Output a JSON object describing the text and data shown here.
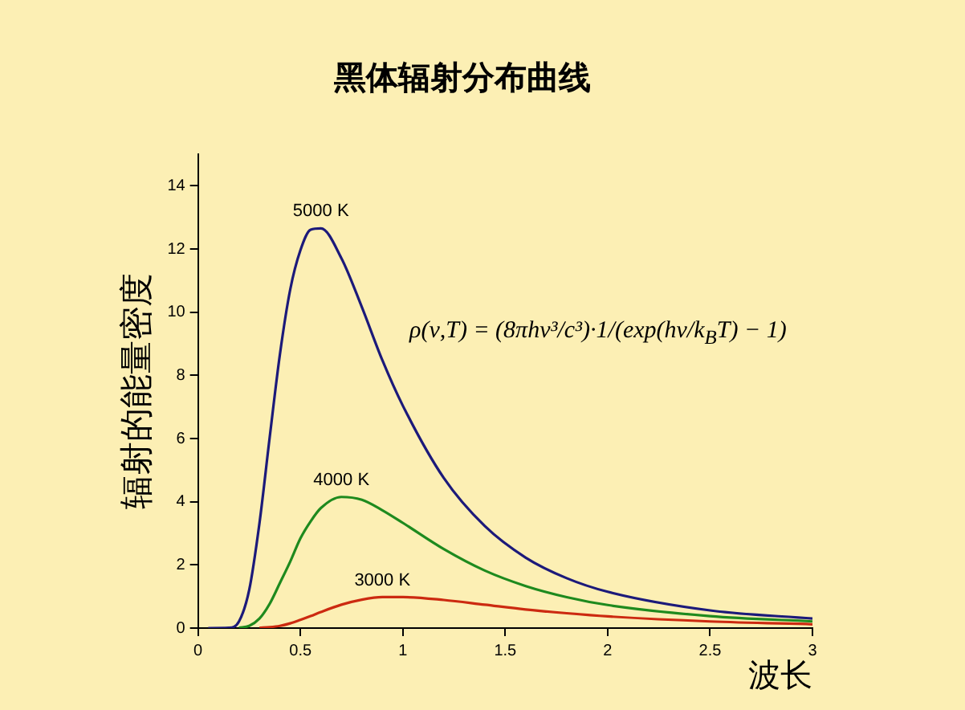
{
  "chart_data": {
    "type": "line",
    "title": "黑体辐射分布曲线",
    "xlabel": "波长",
    "ylabel": "辐射的能量密度",
    "x": [
      0.05,
      0.15,
      0.2,
      0.25,
      0.3,
      0.35,
      0.4,
      0.45,
      0.5,
      0.55,
      0.6,
      0.7,
      0.8,
      0.9,
      1.0,
      1.2,
      1.4,
      1.6,
      1.8,
      2.0,
      2.5,
      3.0
    ],
    "series": [
      {
        "name": "5000 K",
        "color": "#1c1a7a",
        "values": [
          0,
          0.01,
          0.21,
          1.21,
          3.32,
          6.04,
          8.67,
          10.71,
          11.96,
          12.61,
          12.65,
          11.71,
          10.16,
          8.48,
          7.04,
          4.75,
          3.23,
          2.23,
          1.58,
          1.15,
          0.56,
          0.3
        ]
      },
      {
        "name": "4000 K",
        "color": "#1e8a1e",
        "values": [
          null,
          null,
          0.01,
          0.07,
          0.3,
          0.77,
          1.43,
          2.1,
          2.84,
          3.38,
          3.8,
          4.15,
          4.06,
          3.73,
          3.33,
          2.5,
          1.82,
          1.33,
          0.98,
          0.73,
          0.38,
          0.21
        ]
      },
      {
        "name": "3000 K",
        "color": "#cc2a10",
        "values": [
          null,
          null,
          null,
          null,
          0.01,
          0.03,
          0.07,
          0.15,
          0.26,
          0.38,
          0.51,
          0.74,
          0.9,
          0.98,
          0.98,
          0.89,
          0.74,
          0.59,
          0.47,
          0.37,
          0.21,
          0.12
        ]
      }
    ],
    "xlim": [
      0,
      3
    ],
    "xticks": [
      0,
      0.5,
      1,
      1.5,
      2,
      2.5,
      3
    ],
    "ylim": [
      0,
      15
    ],
    "yticks": [
      0,
      2,
      4,
      6,
      8,
      10,
      12,
      14
    ],
    "grid": false,
    "legend": false,
    "marker": "none",
    "line_style": "solid",
    "annotations": [
      "ρ(ν,T) = (8πhν³/c³)·1/(exp(hν/k$_{B}$T) − 1)"
    ]
  }
}
